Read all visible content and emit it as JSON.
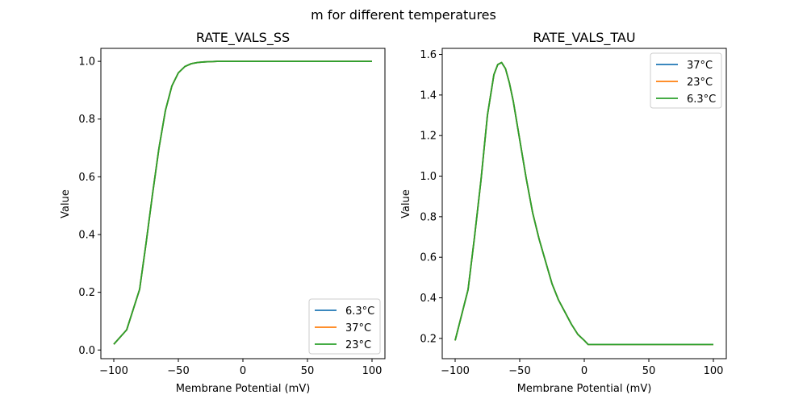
{
  "figure": {
    "suptitle": "m for different temperatures"
  },
  "colors": {
    "blue": "#1f77b4",
    "orange": "#ff7f0e",
    "green": "#2ca02c"
  },
  "chart_data": [
    {
      "type": "line",
      "title": "RATE_VALS_SS",
      "xlabel": "Membrane Potential (mV)",
      "ylabel": "Value",
      "xlim": [
        -110,
        110
      ],
      "ylim": [
        -0.03,
        1.045
      ],
      "xticks": [
        -100,
        -50,
        0,
        50,
        100
      ],
      "xtick_labels": [
        "−100",
        "−50",
        "0",
        "50",
        "100"
      ],
      "yticks": [
        0.0,
        0.2,
        0.4,
        0.6,
        0.8,
        1.0
      ],
      "ytick_labels": [
        "0.0",
        "0.2",
        "0.4",
        "0.6",
        "0.8",
        "1.0"
      ],
      "legend_position": "lower-right",
      "x": [
        -100,
        -90,
        -80,
        -75,
        -70,
        -65,
        -60,
        -55,
        -50,
        -45,
        -40,
        -35,
        -30,
        -25,
        -20,
        -10,
        0,
        25,
        50,
        75,
        100
      ],
      "series": [
        {
          "name": "6.3°C",
          "color": "#1f77b4",
          "values": [
            0.02,
            0.07,
            0.21,
            0.37,
            0.54,
            0.7,
            0.83,
            0.915,
            0.96,
            0.982,
            0.992,
            0.996,
            0.998,
            0.999,
            1.0,
            1.0,
            1.0,
            1.0,
            1.0,
            1.0,
            1.0
          ]
        },
        {
          "name": "37°C",
          "color": "#ff7f0e",
          "values": [
            0.02,
            0.07,
            0.21,
            0.37,
            0.54,
            0.7,
            0.83,
            0.915,
            0.96,
            0.982,
            0.992,
            0.996,
            0.998,
            0.999,
            1.0,
            1.0,
            1.0,
            1.0,
            1.0,
            1.0,
            1.0
          ]
        },
        {
          "name": "23°C",
          "color": "#2ca02c",
          "values": [
            0.02,
            0.07,
            0.21,
            0.37,
            0.54,
            0.7,
            0.83,
            0.915,
            0.96,
            0.982,
            0.992,
            0.996,
            0.998,
            0.999,
            1.0,
            1.0,
            1.0,
            1.0,
            1.0,
            1.0,
            1.0
          ]
        }
      ]
    },
    {
      "type": "line",
      "title": "RATE_VALS_TAU",
      "xlabel": "Membrane Potential (mV)",
      "ylabel": "Value",
      "xlim": [
        -110,
        110
      ],
      "ylim": [
        0.1,
        1.63
      ],
      "xticks": [
        -100,
        -50,
        0,
        50,
        100
      ],
      "xtick_labels": [
        "−100",
        "−50",
        "0",
        "50",
        "100"
      ],
      "yticks": [
        0.2,
        0.4,
        0.6,
        0.8,
        1.0,
        1.2,
        1.4,
        1.6
      ],
      "ytick_labels": [
        "0.2",
        "0.4",
        "0.6",
        "0.8",
        "1.0",
        "1.2",
        "1.4",
        "1.6"
      ],
      "legend_position": "upper-right",
      "x": [
        -100,
        -90,
        -85,
        -80,
        -75,
        -70,
        -67,
        -64,
        -61,
        -58,
        -55,
        -50,
        -45,
        -40,
        -35,
        -30,
        -25,
        -20,
        -15,
        -10,
        -5,
        0,
        3,
        25,
        50,
        75,
        100
      ],
      "series": [
        {
          "name": "37°C",
          "color": "#1f77b4",
          "values": [
            0.19,
            0.44,
            0.7,
            0.98,
            1.3,
            1.5,
            1.55,
            1.56,
            1.53,
            1.46,
            1.37,
            1.18,
            0.99,
            0.82,
            0.69,
            0.58,
            0.47,
            0.39,
            0.33,
            0.27,
            0.22,
            0.19,
            0.17,
            0.17,
            0.17,
            0.17,
            0.17
          ]
        },
        {
          "name": "23°C",
          "color": "#ff7f0e",
          "values": [
            0.19,
            0.44,
            0.7,
            0.98,
            1.3,
            1.5,
            1.55,
            1.56,
            1.53,
            1.46,
            1.37,
            1.18,
            0.99,
            0.82,
            0.69,
            0.58,
            0.47,
            0.39,
            0.33,
            0.27,
            0.22,
            0.19,
            0.17,
            0.17,
            0.17,
            0.17,
            0.17
          ]
        },
        {
          "name": "6.3°C",
          "color": "#2ca02c",
          "values": [
            0.19,
            0.44,
            0.7,
            0.98,
            1.3,
            1.5,
            1.55,
            1.56,
            1.53,
            1.46,
            1.37,
            1.18,
            0.99,
            0.82,
            0.69,
            0.58,
            0.47,
            0.39,
            0.33,
            0.27,
            0.22,
            0.19,
            0.17,
            0.17,
            0.17,
            0.17,
            0.17
          ]
        }
      ]
    }
  ]
}
